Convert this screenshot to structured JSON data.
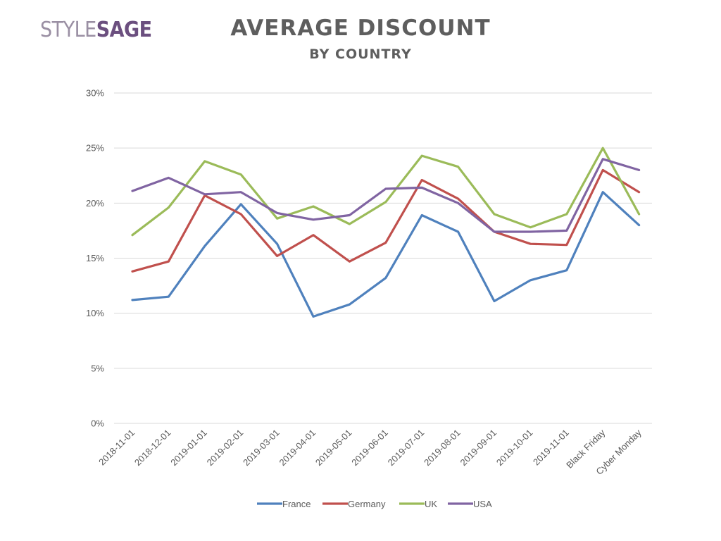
{
  "logo": {
    "part1": "STYLE",
    "part2": "SAGE"
  },
  "chart_data": {
    "type": "line",
    "title": "AVERAGE DISCOUNT",
    "subtitle": "BY COUNTRY",
    "categories": [
      "2018-11-01",
      "2018-12-01",
      "2019-01-01",
      "2019-02-01",
      "2019-03-01",
      "2019-04-01",
      "2019-05-01",
      "2019-06-01",
      "2019-07-01",
      "2019-08-01",
      "2019-09-01",
      "2019-10-01",
      "2019-11-01",
      "Black Friday",
      "Cyber Monday"
    ],
    "ylim": [
      0,
      30
    ],
    "yticks": [
      0,
      5,
      10,
      15,
      20,
      25,
      30
    ],
    "ytick_labels": [
      "0%",
      "5%",
      "10%",
      "15%",
      "20%",
      "25%",
      "30%"
    ],
    "grid": true,
    "legend_position": "bottom",
    "series": [
      {
        "name": "France",
        "color": "#4f81bd",
        "values": [
          11.2,
          11.5,
          16.1,
          19.9,
          16.3,
          9.7,
          10.8,
          13.2,
          18.9,
          17.4,
          11.1,
          13.0,
          13.9,
          21.0,
          18.0
        ]
      },
      {
        "name": "Germany",
        "color": "#c0504d",
        "values": [
          13.8,
          14.7,
          20.7,
          19.0,
          15.2,
          17.1,
          14.7,
          16.4,
          22.1,
          20.4,
          17.4,
          16.3,
          16.2,
          23.0,
          21.0
        ]
      },
      {
        "name": "UK",
        "color": "#9bbb59",
        "values": [
          17.1,
          19.6,
          23.8,
          22.6,
          18.6,
          19.7,
          18.1,
          20.1,
          24.3,
          23.3,
          19.0,
          17.8,
          19.0,
          25.0,
          19.0
        ]
      },
      {
        "name": "USA",
        "color": "#8064a2",
        "values": [
          21.1,
          22.3,
          20.8,
          21.0,
          19.1,
          18.5,
          18.9,
          21.3,
          21.4,
          20.0,
          17.4,
          17.4,
          17.5,
          24.0,
          23.0
        ]
      }
    ]
  }
}
